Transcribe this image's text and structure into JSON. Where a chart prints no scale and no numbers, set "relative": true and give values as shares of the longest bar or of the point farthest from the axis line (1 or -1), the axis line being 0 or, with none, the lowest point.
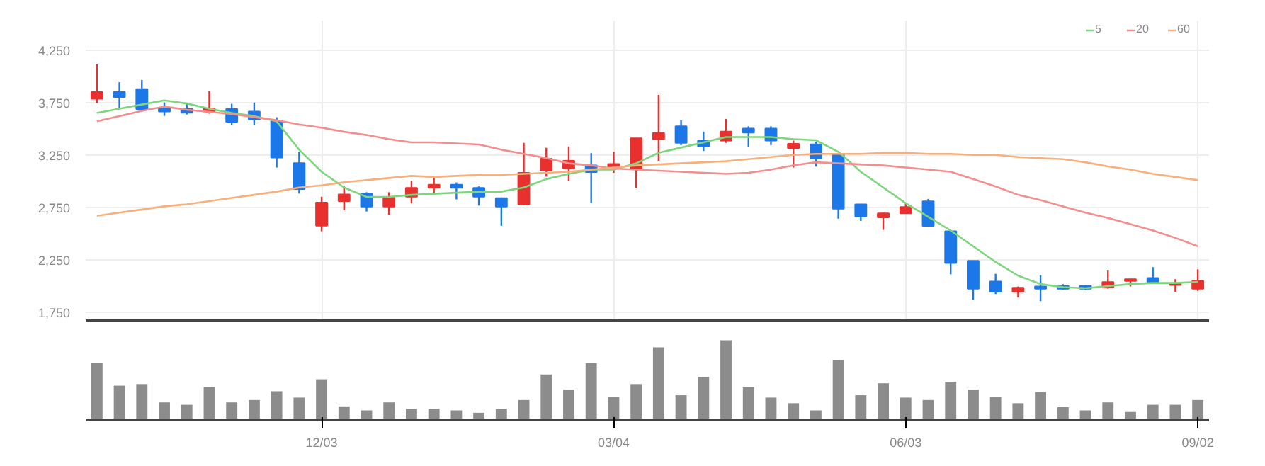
{
  "chart_data": [
    {
      "type": "candlestick",
      "categories": [
        null,
        null,
        null,
        null,
        null,
        null,
        null,
        null,
        null,
        null,
        null,
        null,
        null,
        null,
        null,
        null,
        null,
        null,
        null,
        null,
        null,
        null,
        null,
        null,
        null,
        null,
        null,
        null,
        null,
        null,
        null,
        null,
        null,
        null,
        null,
        null,
        null,
        null,
        null,
        null,
        null,
        null,
        null,
        null,
        null,
        null,
        null,
        null,
        null,
        null
      ],
      "ohlc": [
        [
          3784,
          4113,
          3741,
          3848
        ],
        [
          3848,
          3942,
          3686,
          3801
        ],
        [
          3878,
          3964,
          3664,
          3686
        ],
        [
          3694,
          3750,
          3622,
          3664
        ],
        [
          3686,
          3737,
          3635,
          3652
        ],
        [
          3664,
          3857,
          3643,
          3694
        ],
        [
          3686,
          3737,
          3536,
          3566
        ],
        [
          3664,
          3750,
          3536,
          3587
        ],
        [
          3579,
          3609,
          3130,
          3224
        ],
        [
          3173,
          3280,
          2882,
          2925
        ],
        [
          2575,
          2852,
          2523,
          2797
        ],
        [
          2810,
          2951,
          2724,
          2874
        ],
        [
          2882,
          2895,
          2711,
          2758
        ],
        [
          2758,
          2895,
          2681,
          2844
        ],
        [
          2852,
          3002,
          2788,
          2937
        ],
        [
          2937,
          3044,
          2874,
          2967
        ],
        [
          2967,
          2988,
          2827,
          2937
        ],
        [
          2937,
          2950,
          2767,
          2852
        ],
        [
          2839,
          2845,
          2575,
          2758
        ],
        [
          2780,
          3365,
          2770,
          3079
        ],
        [
          3100,
          3318,
          3044,
          3215
        ],
        [
          3122,
          3331,
          3002,
          3194
        ],
        [
          3151,
          3267,
          2792,
          3087
        ],
        [
          3130,
          3280,
          3079,
          3164
        ],
        [
          3117,
          3408,
          2938,
          3408
        ],
        [
          3399,
          3822,
          3194,
          3459
        ],
        [
          3523,
          3579,
          3344,
          3365
        ],
        [
          3387,
          3472,
          3288,
          3331
        ],
        [
          3387,
          3592,
          3365,
          3472
        ],
        [
          3502,
          3523,
          3323,
          3463
        ],
        [
          3502,
          3523,
          3344,
          3387
        ],
        [
          3314,
          3387,
          3130,
          3357
        ],
        [
          3352,
          3378,
          3139,
          3216
        ],
        [
          3259,
          3270,
          2643,
          2737
        ],
        [
          2780,
          2780,
          2621,
          2664
        ],
        [
          2655,
          2700,
          2536,
          2694
        ],
        [
          2694,
          2788,
          2690,
          2754
        ],
        [
          2809,
          2831,
          2566,
          2574
        ],
        [
          2523,
          2523,
          2113,
          2220
        ],
        [
          2241,
          2241,
          1869,
          1976
        ],
        [
          2044,
          2117,
          1925,
          1946
        ],
        [
          1946,
          1997,
          1891,
          1985
        ],
        [
          1997,
          2104,
          1857,
          1976
        ],
        [
          2002,
          2019,
          1968,
          1976
        ],
        [
          2002,
          2010,
          1963,
          1976
        ],
        [
          1989,
          2155,
          1976,
          2040
        ],
        [
          2049,
          2066,
          1997,
          2066
        ],
        [
          2078,
          2181,
          2032,
          2040
        ],
        [
          2010,
          2066,
          1946,
          2027
        ],
        [
          1976,
          2160,
          1955,
          2049
        ]
      ],
      "colors": [
        "#e8312f",
        "#1c78e8",
        "#1c78e8",
        "#1c78e8",
        "#1c78e8",
        "#e8312f",
        "#1c78e8",
        "#1c78e8",
        "#1c78e8",
        "#1c78e8",
        "#e8312f",
        "#e8312f",
        "#1c78e8",
        "#e8312f",
        "#e8312f",
        "#e8312f",
        "#1c78e8",
        "#1c78e8",
        "#1c78e8",
        "#e8312f",
        "#e8312f",
        "#e8312f",
        "#1c78e8",
        "#e8312f",
        "#e8312f",
        "#e8312f",
        "#1c78e8",
        "#1c78e8",
        "#e8312f",
        "#1c78e8",
        "#1c78e8",
        "#e8312f",
        "#1c78e8",
        "#1c78e8",
        "#1c78e8",
        "#e8312f",
        "#e8312f",
        "#1c78e8",
        "#1c78e8",
        "#1c78e8",
        "#1c78e8",
        "#e8312f",
        "#1c78e8",
        "#1c78e8",
        "#1c78e8",
        "#e8312f",
        "#e8312f",
        "#1c78e8",
        "#e8312f",
        "#e8312f"
      ],
      "series": [
        {
          "name": "5",
          "type": "line",
          "color": "#7dd67d",
          "values": [
            3650,
            3690,
            3730,
            3770,
            3740,
            3690,
            3650,
            3620,
            3570,
            3300,
            3090,
            2940,
            2850,
            2850,
            2870,
            2880,
            2890,
            2900,
            2900,
            2940,
            3020,
            3070,
            3110,
            3110,
            3170,
            3270,
            3320,
            3370,
            3420,
            3420,
            3420,
            3400,
            3390,
            3280,
            3090,
            2940,
            2790,
            2660,
            2530,
            2380,
            2230,
            2100,
            2020,
            1990,
            1980,
            2000,
            2020,
            2030,
            2030,
            2040
          ]
        },
        {
          "name": "20",
          "type": "line",
          "color": "#f28e8e",
          "values": [
            3570,
            3620,
            3670,
            3710,
            3680,
            3660,
            3640,
            3610,
            3580,
            3540,
            3510,
            3470,
            3440,
            3400,
            3370,
            3370,
            3360,
            3350,
            3300,
            3260,
            3220,
            3170,
            3150,
            3120,
            3110,
            3100,
            3090,
            3080,
            3070,
            3080,
            3110,
            3150,
            3180,
            3170,
            3160,
            3150,
            3130,
            3110,
            3090,
            3020,
            2950,
            2870,
            2820,
            2760,
            2700,
            2650,
            2590,
            2530,
            2460,
            2380
          ]
        },
        {
          "name": "60",
          "type": "line",
          "color": "#f7b07c",
          "values": [
            2670,
            2700,
            2730,
            2760,
            2780,
            2810,
            2840,
            2870,
            2900,
            2940,
            2960,
            2990,
            3010,
            3030,
            3050,
            3040,
            3050,
            3060,
            3060,
            3070,
            3080,
            3090,
            3110,
            3130,
            3150,
            3160,
            3170,
            3180,
            3190,
            3210,
            3230,
            3250,
            3260,
            3260,
            3260,
            3270,
            3270,
            3260,
            3260,
            3250,
            3250,
            3230,
            3220,
            3210,
            3180,
            3140,
            3110,
            3070,
            3040,
            3010
          ]
        }
      ],
      "ylim": [
        1670,
        4530
      ],
      "yticks": [
        {
          "value": 1750,
          "label": "1,750"
        },
        {
          "value": 2250,
          "label": "2,250"
        },
        {
          "value": 2750,
          "label": "2,750"
        },
        {
          "value": 3250,
          "label": "3,250"
        },
        {
          "value": 3750,
          "label": "3,750"
        },
        {
          "value": 4250,
          "label": "4,250"
        }
      ],
      "grid": true,
      "legend": "top right",
      "tick_labels": "y"
    },
    {
      "type": "bar",
      "relative": true,
      "categories": [
        null,
        null,
        null,
        null,
        null,
        null,
        null,
        null,
        null,
        null,
        "12/03",
        null,
        null,
        null,
        null,
        null,
        null,
        null,
        null,
        null,
        null,
        null,
        null,
        "03/04",
        null,
        null,
        null,
        null,
        null,
        null,
        null,
        null,
        null,
        null,
        null,
        null,
        "06/03",
        null,
        null,
        null,
        null,
        null,
        null,
        null,
        null,
        null,
        null,
        null,
        null,
        "09/02"
      ],
      "values": [
        0.72,
        0.43,
        0.45,
        0.22,
        0.19,
        0.41,
        0.22,
        0.25,
        0.36,
        0.28,
        0.51,
        0.17,
        0.12,
        0.22,
        0.14,
        0.14,
        0.12,
        0.09,
        0.14,
        0.25,
        0.57,
        0.38,
        0.71,
        0.29,
        0.45,
        0.91,
        0.31,
        0.54,
        1,
        0.41,
        0.28,
        0.21,
        0.12,
        0.75,
        0.31,
        0.46,
        0.28,
        0.25,
        0.48,
        0.38,
        0.29,
        0.21,
        0.35,
        0.16,
        0.12,
        0.22,
        0.1,
        0.19,
        0.19,
        0.25
      ],
      "color": "#8c8c8c",
      "tick_labels": "x"
    }
  ]
}
